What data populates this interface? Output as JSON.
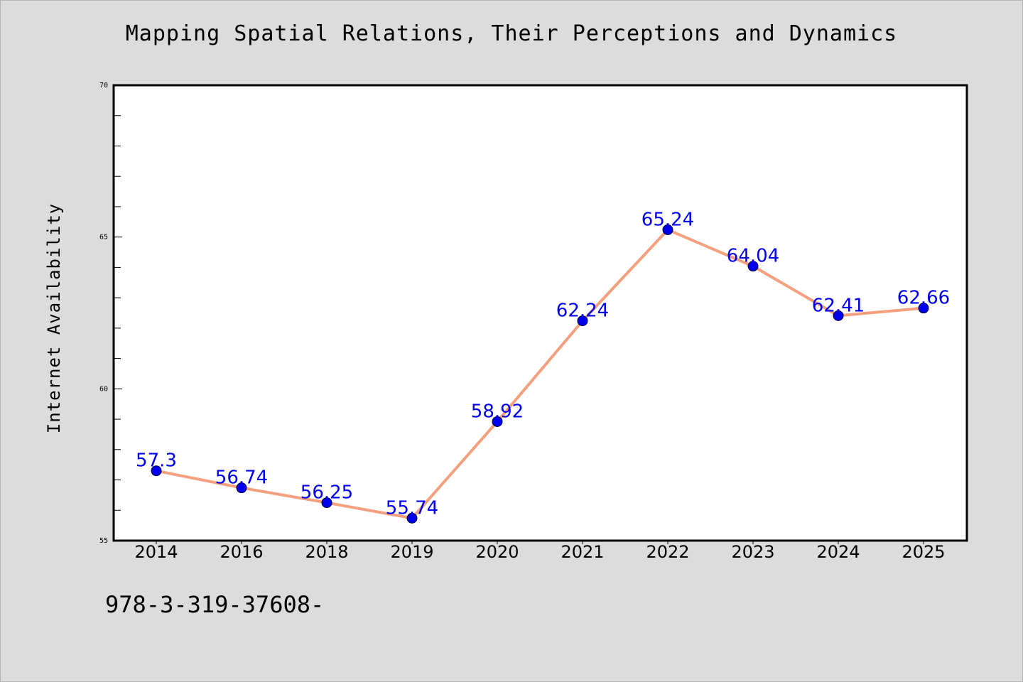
{
  "chart_data": {
    "type": "line",
    "title": "Mapping Spatial Relations, Their Perceptions and Dynamics",
    "xlabel": "",
    "ylabel": "Internet Availability",
    "categories": [
      "2014",
      "2016",
      "2018",
      "2019",
      "2020",
      "2021",
      "2022",
      "2023",
      "2024",
      "2025"
    ],
    "series": [
      {
        "values": [
          57.3,
          56.74,
          56.25,
          55.74,
          58.92,
          62.24,
          65.24,
          64.04,
          62.41,
          62.66
        ],
        "labels": [
          "57.3",
          "56.74",
          "56.25",
          "55.74",
          "58.92",
          "62.24",
          "65.24",
          "64.04",
          "62.41",
          "62.66"
        ]
      }
    ],
    "ylim": [
      55,
      70
    ],
    "yticks": [
      "55",
      "60",
      "65",
      "70"
    ],
    "grid": false,
    "legend": "none",
    "colors": {
      "line": "#f4a07e",
      "marker": "#0000ee",
      "data_label": "#0000ee",
      "background": "#dcdcdc",
      "plot_background": "#ffffff"
    }
  },
  "footnote": "978-3-319-37608-"
}
